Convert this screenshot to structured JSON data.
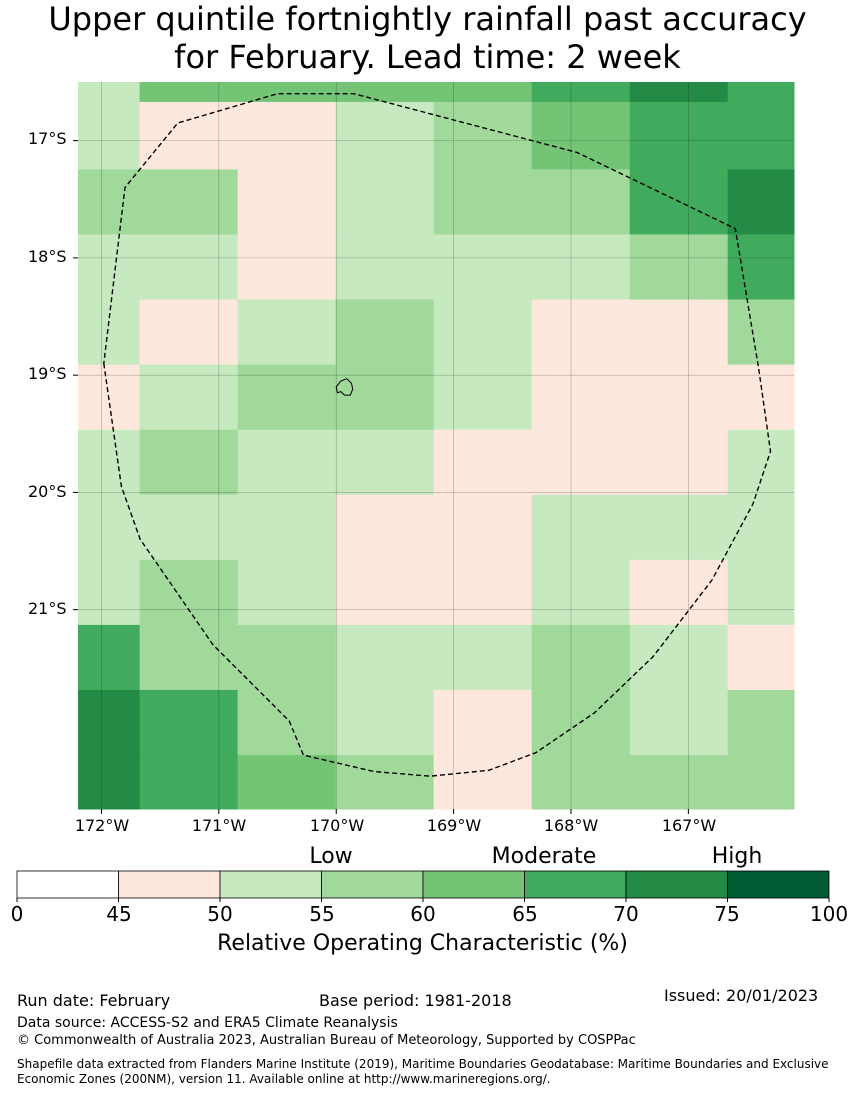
{
  "title_line1": "Upper quintile fortnightly rainfall past accuracy",
  "title_line2": "for February. Lead time: 2 week",
  "map": {
    "lon_range": [
      -172.2,
      -166.1
    ],
    "lat_range": [
      -16.5,
      -22.7
    ],
    "cell_lon_edges": [
      -172.2,
      -171.675,
      -170.84,
      -170.005,
      -169.17,
      -168.335,
      -167.5,
      -166.665,
      -166.1
    ],
    "cell_lat_edges": [
      -16.5,
      -16.67,
      -17.245,
      -17.8,
      -18.355,
      -18.91,
      -19.465,
      -20.02,
      -20.575,
      -21.13,
      -21.685,
      -22.24,
      -22.7
    ],
    "category_colors": [
      "#ffffff",
      "#fee8dd",
      "#c7e9c0",
      "#a1d99b",
      "#74c476",
      "#41ab5d",
      "#238b45",
      "#005a32"
    ],
    "cell_categories": [
      [
        2,
        4,
        4,
        4,
        4,
        5,
        6,
        5
      ],
      [
        2,
        1,
        1,
        2,
        3,
        4,
        5,
        5
      ],
      [
        3,
        3,
        1,
        2,
        3,
        3,
        5,
        6
      ],
      [
        2,
        2,
        1,
        2,
        2,
        2,
        3,
        5
      ],
      [
        2,
        1,
        2,
        3,
        2,
        1,
        1,
        3
      ],
      [
        1,
        2,
        3,
        3,
        2,
        1,
        1,
        1
      ],
      [
        2,
        3,
        2,
        2,
        1,
        1,
        1,
        2
      ],
      [
        2,
        2,
        2,
        1,
        1,
        2,
        2,
        2
      ],
      [
        2,
        3,
        2,
        1,
        1,
        2,
        1,
        2
      ],
      [
        5,
        3,
        3,
        2,
        2,
        3,
        2,
        1
      ],
      [
        6,
        5,
        3,
        2,
        1,
        3,
        2,
        3
      ],
      [
        6,
        5,
        4,
        3,
        1,
        3,
        3,
        3
      ]
    ],
    "eez_boundary": [
      [
        -171.98,
        -18.9
      ],
      [
        -171.83,
        -19.95
      ],
      [
        -171.67,
        -20.4
      ],
      [
        -171.05,
        -21.3
      ],
      [
        -170.4,
        -21.95
      ],
      [
        -170.28,
        -22.24
      ],
      [
        -169.68,
        -22.38
      ],
      [
        -169.2,
        -22.42
      ],
      [
        -168.7,
        -22.37
      ],
      [
        -168.3,
        -22.22
      ],
      [
        -167.8,
        -21.88
      ],
      [
        -167.3,
        -21.4
      ],
      [
        -166.8,
        -20.75
      ],
      [
        -166.45,
        -20.1
      ],
      [
        -166.3,
        -19.65
      ],
      [
        -166.4,
        -18.95
      ],
      [
        -166.6,
        -17.75
      ],
      [
        -167.95,
        -17.1
      ],
      [
        -169.85,
        -16.6
      ],
      [
        -170.5,
        -16.6
      ],
      [
        -171.35,
        -16.85
      ],
      [
        -171.8,
        -17.4
      ],
      [
        -171.98,
        -18.9
      ]
    ],
    "island_outline": [
      [
        -169.96,
        -19.05
      ],
      [
        -169.91,
        -19.03
      ],
      [
        -169.87,
        -19.07
      ],
      [
        -169.86,
        -19.12
      ],
      [
        -169.88,
        -19.17
      ],
      [
        -169.93,
        -19.17
      ],
      [
        -169.96,
        -19.14
      ],
      [
        -169.99,
        -19.15
      ],
      [
        -170.0,
        -19.1
      ],
      [
        -169.96,
        -19.05
      ]
    ],
    "lat_ticks": [
      {
        "value": -17,
        "label": "17°S"
      },
      {
        "value": -18,
        "label": "18°S"
      },
      {
        "value": -19,
        "label": "19°S"
      },
      {
        "value": -20,
        "label": "20°S"
      },
      {
        "value": -21,
        "label": "21°S"
      }
    ],
    "lon_ticks": [
      {
        "value": -172,
        "label": "172°W"
      },
      {
        "value": -171,
        "label": "171°W"
      },
      {
        "value": -170,
        "label": "170°W"
      },
      {
        "value": -169,
        "label": "169°W"
      },
      {
        "value": -168,
        "label": "168°W"
      },
      {
        "value": -167,
        "label": "167°W"
      }
    ]
  },
  "colorbar": {
    "bounds": [
      0,
      45,
      50,
      55,
      60,
      65,
      70,
      75,
      100
    ],
    "colors": [
      "#ffffff",
      "#fee8dd",
      "#c7e9c0",
      "#a1d99b",
      "#74c476",
      "#41ab5d",
      "#238b45",
      "#005a32"
    ],
    "tick_labels": [
      "0",
      "45",
      "50",
      "55",
      "60",
      "65",
      "70",
      "75",
      "100"
    ],
    "category_labels": {
      "low": "Low",
      "moderate": "Moderate",
      "high": "High"
    },
    "axis_label": "Relative Operating Characteristic (%)"
  },
  "footer": {
    "run_date": "Run date: February",
    "base_period": "Base period: 1981-2018",
    "issued": "Issued: 20/01/2023",
    "data_source": "Data source: ACCESS-S2 and ERA5 Climate Reanalysis",
    "copyright": "© Commonwealth of Australia 2023, Australian Bureau of Meteorology, Supported by COSPPac",
    "shapefile_credit": "Shapefile data extracted from Flanders Marine Institute (2019), Maritime Boundaries Geodatabase: Maritime Boundaries and Exclusive Economic Zones (200NM), version 11. Available online at http://www.marineregions.org/."
  }
}
